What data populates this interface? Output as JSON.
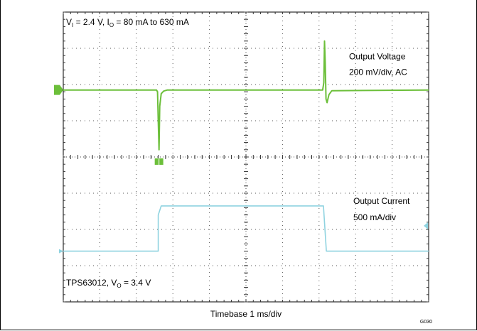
{
  "chart_data": {
    "type": "line",
    "title": "",
    "grid": {
      "divisions_x": 10,
      "divisions_y": 8,
      "minor_ticks_per_div": 5
    },
    "top_annotation": {
      "parts": [
        "V",
        "I",
        " = 2.4 V, I",
        "O",
        " = 80 mA to 630 mA"
      ]
    },
    "bottom_annotation": {
      "parts": [
        "TPS63012, V",
        "O",
        " = 3.4 V"
      ]
    },
    "xlabel": "Timebase 1 ms/div",
    "figure_id": "G030",
    "series": [
      {
        "name": "Output Voltage",
        "label_lines": [
          "Output Voltage",
          "200 mV/div, AC"
        ],
        "color": "#6cbf3a",
        "x_divs": [
          0,
          2.55,
          2.58,
          2.6,
          2.62,
          2.64,
          2.68,
          2.75,
          2.85,
          7.1,
          7.13,
          7.15,
          7.17,
          7.19,
          7.22,
          7.27,
          7.35,
          10
        ],
        "y_divs": [
          5.85,
          5.85,
          5.8,
          5.0,
          4.2,
          5.4,
          5.75,
          5.82,
          5.85,
          5.85,
          6.05,
          7.2,
          6.6,
          5.6,
          5.5,
          5.72,
          5.83,
          5.85
        ]
      },
      {
        "name": "Output Current",
        "label_lines": [
          "Output Current",
          "500 mA/div"
        ],
        "color": "#8fd3e0",
        "x_divs": [
          0,
          2.6,
          2.6,
          2.68,
          7.12,
          7.2,
          10
        ],
        "y_divs": [
          1.4,
          1.4,
          2.4,
          2.65,
          2.65,
          1.4,
          1.4
        ]
      }
    ]
  }
}
